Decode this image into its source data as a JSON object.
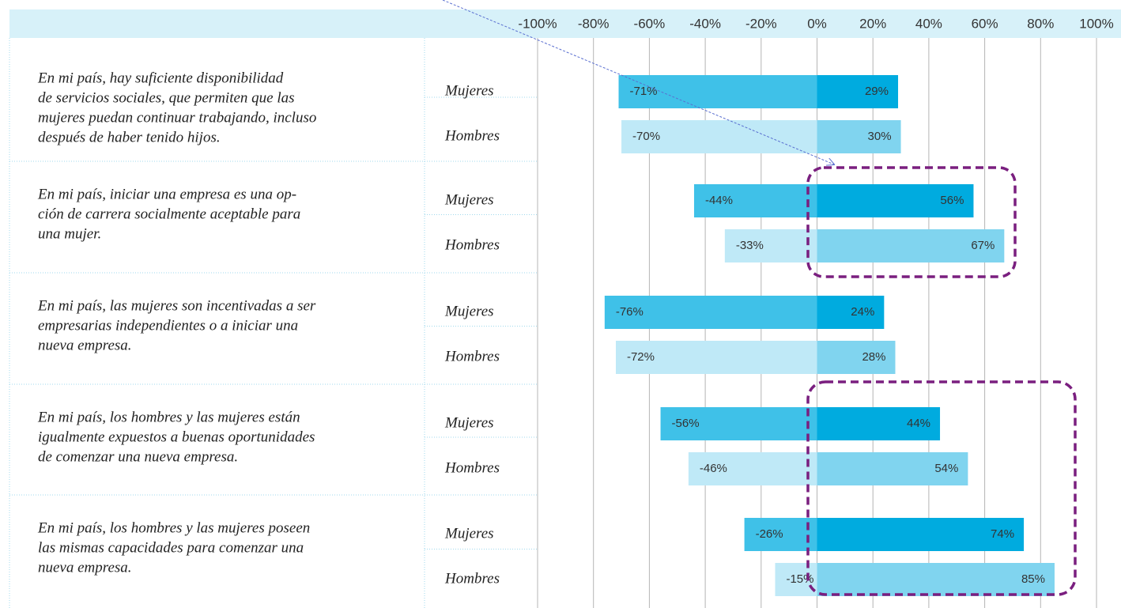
{
  "chart_data": {
    "type": "diverging-bar",
    "xlim": [
      -100,
      100
    ],
    "xticks": [
      {
        "value": -100,
        "label": "-100%"
      },
      {
        "value": -80,
        "label": "-80%"
      },
      {
        "value": -60,
        "label": "-60%"
      },
      {
        "value": -40,
        "label": "-40%"
      },
      {
        "value": -20,
        "label": "-20%"
      },
      {
        "value": 0,
        "label": "0%"
      },
      {
        "value": 20,
        "label": "20%"
      },
      {
        "value": 40,
        "label": "40%"
      },
      {
        "value": 60,
        "label": "60%"
      },
      {
        "value": 80,
        "label": "80%"
      },
      {
        "value": 100,
        "label": "100%"
      }
    ],
    "grid": true,
    "rows": [
      {
        "lines": [
          "En mi país, hay suficiente disponibilidad",
          "de servicios sociales, que permiten que las",
          "mujeres puedan continuar trabajando, incluso",
          "después de haber tenido hijos."
        ],
        "bars": [
          {
            "name": "Mujeres",
            "values": [
              -71,
              29
            ],
            "value_labels": [
              "-71%",
              "29%"
            ],
            "colors": [
              "#3fc1e8",
              "#00abdf"
            ]
          },
          {
            "name": "Hombres",
            "values": [
              -70,
              30
            ],
            "value_labels": [
              "-70%",
              "30%"
            ],
            "colors": [
              "#bfe9f7",
              "#80d4ef"
            ]
          }
        ]
      },
      {
        "lines": [
          "En mi país, iniciar una empresa es una op-",
          "ción de carrera socialmente aceptable para",
          "una mujer."
        ],
        "bars": [
          {
            "name": "Mujeres",
            "values": [
              -44,
              56
            ],
            "value_labels": [
              "-44%",
              "56%"
            ],
            "colors": [
              "#3fc1e8",
              "#00abdf"
            ]
          },
          {
            "name": "Hombres",
            "values": [
              -33,
              67
            ],
            "value_labels": [
              "-33%",
              "67%"
            ],
            "colors": [
              "#bfe9f7",
              "#80d4ef"
            ]
          }
        ]
      },
      {
        "lines": [
          "En mi país, las mujeres son incentivadas a ser",
          "empresarias independientes o a iniciar una",
          "nueva empresa."
        ],
        "bars": [
          {
            "name": "Mujeres",
            "values": [
              -76,
              24
            ],
            "value_labels": [
              "-76%",
              "24%"
            ],
            "colors": [
              "#3fc1e8",
              "#00abdf"
            ]
          },
          {
            "name": "Hombres",
            "values": [
              -72,
              28
            ],
            "value_labels": [
              "-72%",
              "28%"
            ],
            "colors": [
              "#bfe9f7",
              "#80d4ef"
            ]
          }
        ]
      },
      {
        "lines": [
          "En mi país, los hombres y las mujeres están",
          "igualmente expuestos a buenas oportunidades",
          "de comenzar una nueva empresa."
        ],
        "bars": [
          {
            "name": "Mujeres",
            "values": [
              -56,
              44
            ],
            "value_labels": [
              "-56%",
              "44%"
            ],
            "colors": [
              "#3fc1e8",
              "#00abdf"
            ]
          },
          {
            "name": "Hombres",
            "values": [
              -46,
              54
            ],
            "value_labels": [
              "-46%",
              "54%"
            ],
            "colors": [
              "#bfe9f7",
              "#80d4ef"
            ]
          }
        ]
      },
      {
        "lines": [
          "En mi país, los hombres y las mujeres poseen",
          "las mismas capacidades para comenzar una",
          "nueva empresa."
        ],
        "bars": [
          {
            "name": "Mujeres",
            "values": [
              -26,
              74
            ],
            "value_labels": [
              "-26%",
              "74%"
            ],
            "colors": [
              "#3fc1e8",
              "#00abdf"
            ]
          },
          {
            "name": "Hombres",
            "values": [
              -15,
              85
            ],
            "value_labels": [
              "-15%",
              "85%"
            ],
            "colors": [
              "#bfe9f7",
              "#80d4ef"
            ]
          }
        ]
      }
    ]
  }
}
